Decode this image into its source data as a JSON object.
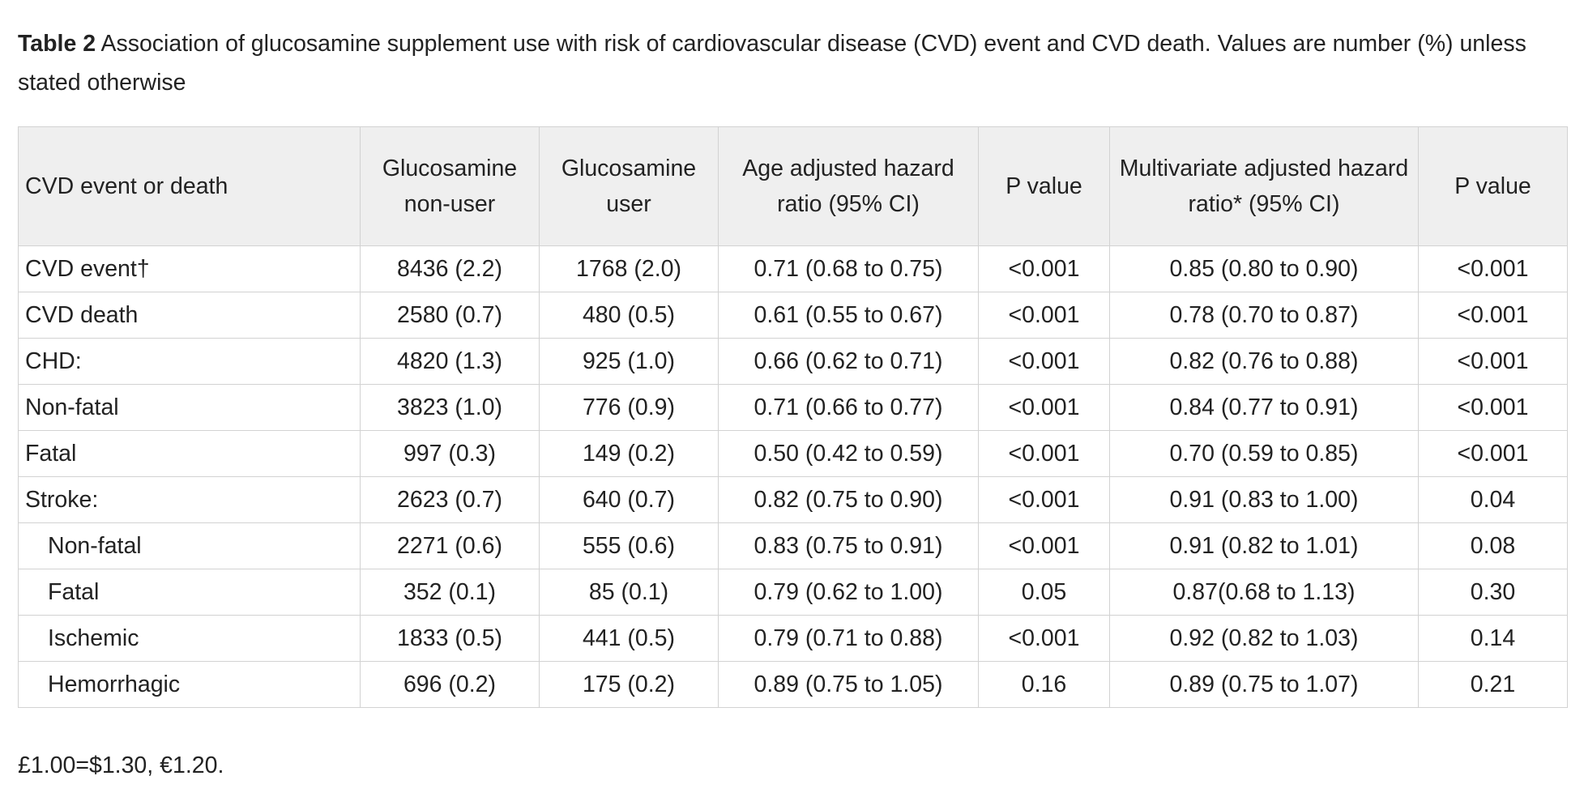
{
  "caption": {
    "label": "Table 2",
    "text": " Association of glucosamine supplement use with risk of cardiovascular disease (CVD) event and CVD death. Values are number (%) unless stated otherwise"
  },
  "table": {
    "headers": [
      "CVD event or death",
      "Glucosamine non-user",
      "Glucosamine user",
      "Age adjusted hazard ratio (95% CI)",
      "P value",
      "Multivariate adjusted hazard ratio* (95% CI)",
      "P value"
    ],
    "rows": [
      {
        "indent": false,
        "cells": [
          "CVD event†",
          "8436 (2.2)",
          "1768 (2.0)",
          "0.71 (0.68 to 0.75)",
          "<0.001",
          "0.85 (0.80 to 0.90)",
          "<0.001"
        ]
      },
      {
        "indent": false,
        "cells": [
          "CVD death",
          "2580 (0.7)",
          "480 (0.5)",
          "0.61 (0.55 to 0.67)",
          "<0.001",
          "0.78 (0.70 to 0.87)",
          "<0.001"
        ]
      },
      {
        "indent": false,
        "cells": [
          "CHD:",
          "4820 (1.3)",
          "925 (1.0)",
          "0.66 (0.62 to 0.71)",
          "<0.001",
          "0.82 (0.76 to 0.88)",
          "<0.001"
        ]
      },
      {
        "indent": false,
        "cells": [
          "Non-fatal",
          "3823 (1.0)",
          "776 (0.9)",
          "0.71 (0.66 to 0.77)",
          "<0.001",
          "0.84 (0.77 to 0.91)",
          "<0.001"
        ]
      },
      {
        "indent": false,
        "cells": [
          "Fatal",
          "997 (0.3)",
          "149 (0.2)",
          "0.50 (0.42 to 0.59)",
          "<0.001",
          "0.70 (0.59 to 0.85)",
          "<0.001"
        ]
      },
      {
        "indent": false,
        "cells": [
          "Stroke:",
          "2623 (0.7)",
          "640 (0.7)",
          "0.82 (0.75 to 0.90)",
          "<0.001",
          "0.91 (0.83 to 1.00)",
          "0.04"
        ]
      },
      {
        "indent": true,
        "cells": [
          "Non-fatal",
          "2271 (0.6)",
          "555 (0.6)",
          "0.83 (0.75 to 0.91)",
          "<0.001",
          "0.91 (0.82 to 1.01)",
          "0.08"
        ]
      },
      {
        "indent": true,
        "cells": [
          "Fatal",
          "352 (0.1)",
          "85 (0.1)",
          "0.79 (0.62 to 1.00)",
          "0.05",
          "0.87(0.68 to 1.13)",
          "0.30"
        ]
      },
      {
        "indent": true,
        "cells": [
          "Ischemic",
          "1833 (0.5)",
          "441 (0.5)",
          "0.79 (0.71 to 0.88)",
          "<0.001",
          "0.92 (0.82 to 1.03)",
          "0.14"
        ]
      },
      {
        "indent": true,
        "cells": [
          "Hemorrhagic",
          "696 (0.2)",
          "175 (0.2)",
          "0.89 (0.75 to 1.05)",
          "0.16",
          "0.89 (0.75 to 1.07)",
          "0.21"
        ]
      }
    ]
  },
  "footnote": "£1.00=$1.30, €1.20."
}
